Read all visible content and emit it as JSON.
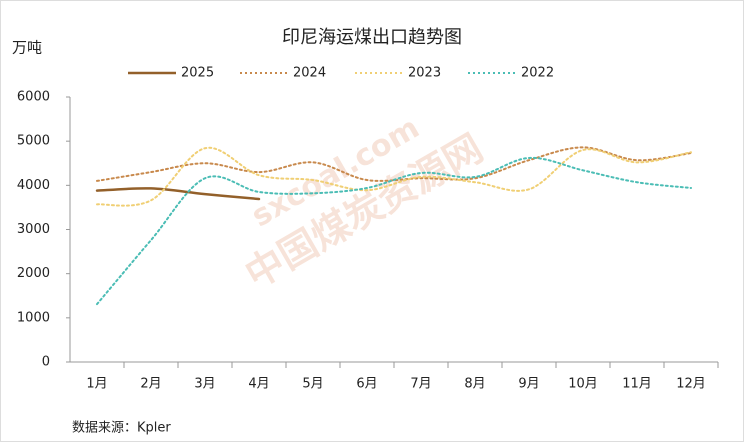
{
  "chart_data": {
    "type": "line",
    "title": "印尼海运煤出口趋势图",
    "y_label": "万吨",
    "source": "数据来源：Kpler",
    "watermark": [
      "sxcoal.com",
      "中国煤炭资源网"
    ],
    "categories": [
      "1月",
      "2月",
      "3月",
      "4月",
      "5月",
      "6月",
      "7月",
      "8月",
      "9月",
      "10月",
      "11月",
      "12月"
    ],
    "series": [
      {
        "name": "2025",
        "color": "#93602a",
        "style": "solid",
        "values": [
          3880,
          3930,
          3800,
          3690,
          null,
          null,
          null,
          null,
          null,
          null,
          null,
          null
        ]
      },
      {
        "name": "2024",
        "color": "#c8894c",
        "style": "dotted",
        "values": [
          4100,
          4300,
          4500,
          4300,
          4520,
          4120,
          4160,
          4160,
          4570,
          4860,
          4570,
          4730
        ]
      },
      {
        "name": "2023",
        "color": "#f0cf74",
        "style": "dotted",
        "values": [
          3570,
          3660,
          4840,
          4230,
          4120,
          3890,
          4190,
          4070,
          3910,
          4800,
          4520,
          4750
        ]
      },
      {
        "name": "2022",
        "color": "#4bbdb5",
        "style": "dotted",
        "values": [
          1310,
          2760,
          4160,
          3850,
          3820,
          3940,
          4280,
          4190,
          4620,
          4340,
          4070,
          3940
        ]
      }
    ],
    "ylim": [
      0,
      6000
    ],
    "yticks": [
      0,
      1000,
      2000,
      3000,
      4000,
      5000,
      6000
    ],
    "grid": false,
    "legend": "top"
  }
}
